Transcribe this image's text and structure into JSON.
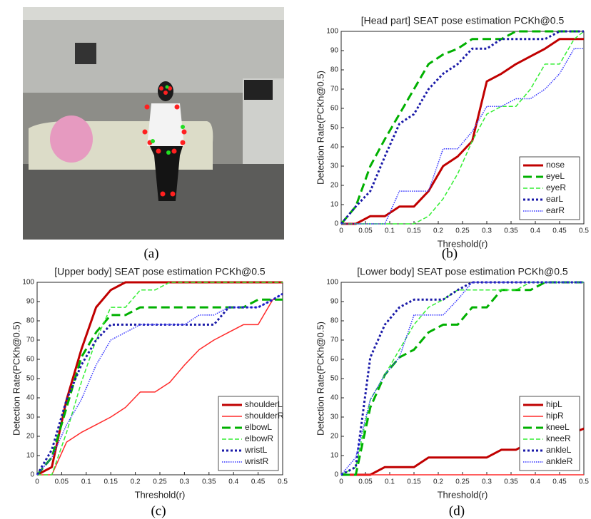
{
  "captions": [
    "(a)",
    "(b)",
    "(c)",
    "(d)"
  ],
  "chart_data": [
    {
      "type": "line",
      "title": "[Head part] SEAT pose estimation PCKh@0.5",
      "x_label": "Threshold(r)",
      "y_label": "Detection Rate(PCKh@0.5)",
      "x": [
        0,
        0.03,
        0.06,
        0.09,
        0.12,
        0.15,
        0.18,
        0.21,
        0.24,
        0.27,
        0.3,
        0.33,
        0.36,
        0.39,
        0.42,
        0.45,
        0.48,
        0.5
      ],
      "xlim": [
        0,
        0.5
      ],
      "xticks": [
        0,
        0.05,
        0.1,
        0.15,
        0.2,
        0.25,
        0.3,
        0.35,
        0.4,
        0.45,
        0.5
      ],
      "ylim": [
        0,
        100
      ],
      "yticks": [
        0,
        10,
        20,
        30,
        40,
        50,
        60,
        70,
        80,
        90,
        100
      ],
      "legend": "lower right",
      "series": [
        {
          "name": "nose",
          "color": "#c00000",
          "style": "solid",
          "linewidth": 3,
          "values": [
            0,
            0,
            4,
            4,
            9,
            9,
            17,
            30,
            35,
            43,
            74,
            78,
            83,
            87,
            91,
            96,
            96,
            96
          ]
        },
        {
          "name": "eyeL",
          "color": "#00b000",
          "style": "dashed",
          "linewidth": 3,
          "values": [
            0,
            9,
            30,
            44,
            57,
            70,
            83,
            88,
            91,
            96,
            96,
            96,
            100,
            100,
            100,
            100,
            100,
            100
          ]
        },
        {
          "name": "eyeR",
          "color": "#33ee33",
          "style": "dashed",
          "linewidth": 1.5,
          "values": [
            0,
            0,
            0,
            0,
            0,
            0,
            4,
            13,
            26,
            43,
            57,
            61,
            61,
            70,
            83,
            83,
            96,
            100
          ]
        },
        {
          "name": "earL",
          "color": "#1a1aa8",
          "style": "dotted",
          "linewidth": 3,
          "values": [
            0,
            9,
            17,
            35,
            52,
            57,
            70,
            78,
            83,
            91,
            91,
            96,
            96,
            96,
            96,
            100,
            100,
            100
          ]
        },
        {
          "name": "earR",
          "color": "#3333ff",
          "style": "dotted",
          "linewidth": 1.5,
          "values": [
            0,
            0,
            0,
            0,
            17,
            17,
            17,
            39,
            39,
            48,
            61,
            61,
            65,
            65,
            70,
            78,
            91,
            91
          ]
        }
      ]
    },
    {
      "type": "line",
      "title": "[Upper body] SEAT pose estimation PCKh@0.5",
      "x_label": "Threshold(r)",
      "y_label": "Detection Rate(PCKh@0.5)",
      "x": [
        0,
        0.03,
        0.06,
        0.09,
        0.12,
        0.15,
        0.18,
        0.21,
        0.24,
        0.27,
        0.3,
        0.33,
        0.36,
        0.39,
        0.42,
        0.45,
        0.48,
        0.5
      ],
      "xlim": [
        0,
        0.5
      ],
      "xticks": [
        0,
        0.05,
        0.1,
        0.15,
        0.2,
        0.25,
        0.3,
        0.35,
        0.4,
        0.45,
        0.5
      ],
      "ylim": [
        0,
        100
      ],
      "yticks": [
        0,
        10,
        20,
        30,
        40,
        50,
        60,
        70,
        80,
        90,
        100
      ],
      "legend": "lower right",
      "series": [
        {
          "name": "shoulderL",
          "color": "#c00000",
          "style": "solid",
          "linewidth": 3,
          "values": [
            0,
            4,
            39,
            65,
            87,
            96,
            100,
            100,
            100,
            100,
            100,
            100,
            100,
            100,
            100,
            100,
            100,
            100
          ]
        },
        {
          "name": "shoulderR",
          "color": "#ff2a2a",
          "style": "solid",
          "linewidth": 1.5,
          "values": [
            0,
            0,
            17,
            22,
            26,
            30,
            35,
            43,
            43,
            48,
            57,
            65,
            70,
            74,
            78,
            78,
            91,
            91
          ]
        },
        {
          "name": "elbowL",
          "color": "#00b000",
          "style": "dashed",
          "linewidth": 3,
          "values": [
            0,
            9,
            35,
            61,
            74,
            83,
            83,
            87,
            87,
            87,
            87,
            87,
            87,
            87,
            87,
            91,
            91,
            91
          ]
        },
        {
          "name": "elbowR",
          "color": "#33ee33",
          "style": "dashed",
          "linewidth": 1.5,
          "values": [
            0,
            0,
            22,
            48,
            70,
            87,
            87,
            96,
            96,
            100,
            100,
            100,
            100,
            100,
            100,
            100,
            100,
            100
          ]
        },
        {
          "name": "wristL",
          "color": "#1a1aa8",
          "style": "dotted",
          "linewidth": 3,
          "values": [
            0,
            13,
            39,
            57,
            70,
            78,
            78,
            78,
            78,
            78,
            78,
            78,
            78,
            87,
            87,
            87,
            91,
            94
          ]
        },
        {
          "name": "wristR",
          "color": "#3333ff",
          "style": "dotted",
          "linewidth": 1.5,
          "values": [
            0,
            9,
            26,
            39,
            57,
            70,
            74,
            78,
            78,
            78,
            78,
            83,
            83,
            87,
            87,
            87,
            91,
            94
          ]
        }
      ]
    },
    {
      "type": "line",
      "title": "[Lower body] SEAT pose estimation PCKh@0.5",
      "x_label": "Threshold(r)",
      "y_label": "Detection Rate(PCKh@0.5)",
      "x": [
        0,
        0.03,
        0.06,
        0.09,
        0.12,
        0.15,
        0.18,
        0.21,
        0.24,
        0.27,
        0.3,
        0.33,
        0.36,
        0.39,
        0.42,
        0.45,
        0.48,
        0.5
      ],
      "xlim": [
        0,
        0.5
      ],
      "xticks": [
        0,
        0.05,
        0.1,
        0.15,
        0.2,
        0.25,
        0.3,
        0.35,
        0.4,
        0.45,
        0.5
      ],
      "ylim": [
        0,
        100
      ],
      "yticks": [
        0,
        10,
        20,
        30,
        40,
        50,
        60,
        70,
        80,
        90,
        100
      ],
      "legend": "lower right",
      "series": [
        {
          "name": "hipL",
          "color": "#c00000",
          "style": "solid",
          "linewidth": 3,
          "values": [
            0,
            0,
            0,
            4,
            4,
            4,
            9,
            9,
            9,
            9,
            9,
            13,
            13,
            17,
            17,
            22,
            22,
            24
          ]
        },
        {
          "name": "hipR",
          "color": "#ff2a2a",
          "style": "solid",
          "linewidth": 1.5,
          "values": [
            0,
            0,
            0,
            0,
            0,
            0,
            0,
            0,
            0,
            0,
            0,
            0,
            0,
            0,
            0,
            0,
            0,
            0
          ]
        },
        {
          "name": "kneeL",
          "color": "#00b000",
          "style": "dashed",
          "linewidth": 3,
          "values": [
            0,
            0,
            35,
            52,
            61,
            65,
            74,
            78,
            78,
            87,
            87,
            96,
            96,
            96,
            100,
            100,
            100,
            100
          ]
        },
        {
          "name": "kneeR",
          "color": "#33ee33",
          "style": "dashed",
          "linewidth": 1.5,
          "values": [
            0,
            4,
            39,
            52,
            65,
            78,
            87,
            91,
            96,
            96,
            96,
            96,
            96,
            100,
            100,
            100,
            100,
            100
          ]
        },
        {
          "name": "ankleL",
          "color": "#1a1aa8",
          "style": "dotted",
          "linewidth": 3,
          "values": [
            0,
            4,
            61,
            78,
            87,
            91,
            91,
            91,
            96,
            100,
            100,
            100,
            100,
            100,
            100,
            100,
            100,
            100
          ]
        },
        {
          "name": "ankleR",
          "color": "#3333ff",
          "style": "dotted",
          "linewidth": 1.5,
          "values": [
            0,
            9,
            39,
            52,
            61,
            83,
            83,
            83,
            91,
            100,
            100,
            100,
            100,
            100,
            100,
            100,
            100,
            100
          ]
        }
      ]
    }
  ]
}
